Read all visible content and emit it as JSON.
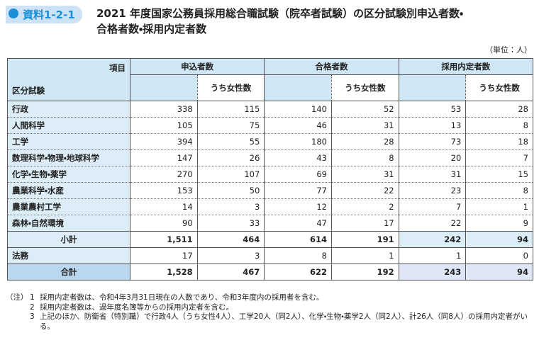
{
  "header": {
    "label": "資料1-2-1",
    "title_lines": [
      "2021 年度国家公務員採用総合職試験（院卒者試験）の区分試験別申込者数・",
      "合格者数・採用内定者数"
    ],
    "unit": "（単位：人）"
  },
  "table": {
    "corner_top": "項目",
    "corner_bottom": "区分試験",
    "groups": [
      "申込者数",
      "合格者数",
      "採用内定者数"
    ],
    "sub_header": "うち女性数",
    "rows": [
      [
        "行政",
        "338",
        "115",
        "140",
        "52",
        "53",
        "28"
      ],
      [
        "人間科学",
        "105",
        "75",
        "46",
        "31",
        "13",
        "8"
      ],
      [
        "工学",
        "394",
        "55",
        "180",
        "28",
        "73",
        "18"
      ],
      [
        "数理科学・物理・地球科学",
        "147",
        "26",
        "43",
        "8",
        "20",
        "7"
      ],
      [
        "化学・生物・薬学",
        "270",
        "107",
        "69",
        "31",
        "31",
        "15"
      ],
      [
        "農業科学・水産",
        "153",
        "50",
        "77",
        "22",
        "23",
        "8"
      ],
      [
        "農業農村工学",
        "14",
        "3",
        "12",
        "2",
        "7",
        "1"
      ],
      [
        "森林・自然環境",
        "90",
        "33",
        "47",
        "17",
        "22",
        "9"
      ],
      [
        "小計",
        "1,511",
        "464",
        "614",
        "191",
        "242",
        "94"
      ],
      [
        "法務",
        "17",
        "3",
        "8",
        "1",
        "1",
        "0"
      ],
      [
        "合計",
        "1,528",
        "467",
        "622",
        "192",
        "243",
        "94"
      ]
    ]
  },
  "notes": {
    "prefix": "（注）",
    "items": [
      {
        "num": "1",
        "text": "採用内定者数は、令和4年3月31日現在の人数であり、令和3年度内の採用者を含む。"
      },
      {
        "num": "2",
        "text": "採用内定者数は、過年度名簿等からの採用内定者を含む。"
      },
      {
        "num": "3",
        "text": "上記のほか、防衛省（特別職）で行政4人（うち女性4人）、工学20人（同2人）、化学・生物・薬学2人（同2人）、計26人（同8人）の採用内定者がいる。"
      }
    ]
  }
}
